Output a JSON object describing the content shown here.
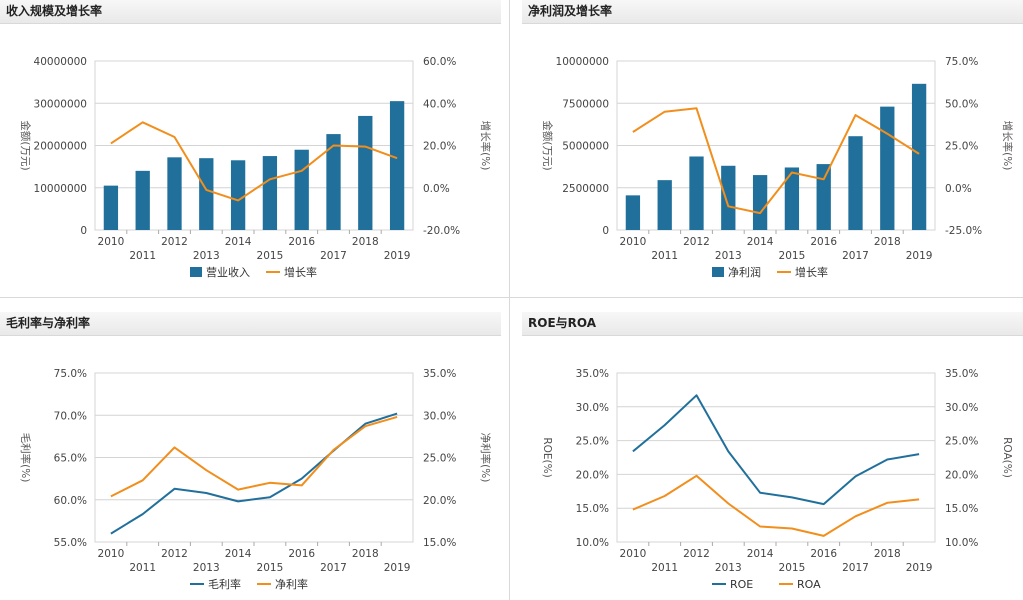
{
  "panels": [
    {
      "id": "revenue",
      "title": "收入规模及增长率"
    },
    {
      "id": "profit",
      "title": "净利润及增长率"
    },
    {
      "id": "margin",
      "title": "毛利率与净利率"
    },
    {
      "id": "roe",
      "title": "ROE与ROA"
    }
  ],
  "chart_data": [
    {
      "type": "bar",
      "title": "收入规模及增长率",
      "categories": [
        "2010",
        "2011",
        "2012",
        "2013",
        "2014",
        "2015",
        "2016",
        "2017",
        "2018",
        "2019"
      ],
      "left_axis": {
        "label": "金额(万元)",
        "ticks": [
          "0",
          "10000000",
          "20000000",
          "30000000",
          "40000000"
        ],
        "lim": [
          0,
          40000000
        ]
      },
      "right_axis": {
        "label": "增长率(%)",
        "ticks": [
          "-20.0%",
          "0.0%",
          "20.0%",
          "40.0%",
          "60.0%"
        ],
        "lim": [
          -20,
          60
        ]
      },
      "series": [
        {
          "name": "营业收入",
          "kind": "bar",
          "axis": "left",
          "color": "#21709c",
          "values": [
            10500000,
            14000000,
            17200000,
            17000000,
            16500000,
            17500000,
            19000000,
            22700000,
            27000000,
            30500000
          ]
        },
        {
          "name": "增长率",
          "kind": "line",
          "axis": "right",
          "color": "#f18e1c",
          "values": [
            21,
            31,
            24,
            -1,
            -6,
            4,
            8,
            20,
            19.5,
            14
          ]
        }
      ],
      "grid": true,
      "legend": "bottom"
    },
    {
      "type": "bar",
      "title": "净利润及增长率",
      "categories": [
        "2010",
        "2011",
        "2012",
        "2013",
        "2014",
        "2015",
        "2016",
        "2017",
        "2018",
        "2019"
      ],
      "left_axis": {
        "label": "金额(万元)",
        "ticks": [
          "0",
          "2500000",
          "5000000",
          "7500000",
          "10000000"
        ],
        "lim": [
          0,
          10000000
        ]
      },
      "right_axis": {
        "label": "增长率(%)",
        "ticks": [
          "-25.0%",
          "0.0%",
          "25.0%",
          "50.0%",
          "75.0%"
        ],
        "lim": [
          -25,
          75
        ]
      },
      "series": [
        {
          "name": "净利润",
          "kind": "bar",
          "axis": "left",
          "color": "#21709c",
          "values": [
            2050000,
            2950000,
            4350000,
            3800000,
            3250000,
            3700000,
            3900000,
            5550000,
            7300000,
            8650000
          ]
        },
        {
          "name": "增长率",
          "kind": "line",
          "axis": "right",
          "color": "#f18e1c",
          "values": [
            33,
            45,
            47,
            -11,
            -15,
            9,
            5,
            43,
            32,
            20
          ]
        }
      ],
      "grid": true,
      "legend": "bottom"
    },
    {
      "type": "line",
      "title": "毛利率与净利率",
      "categories": [
        "2010",
        "2011",
        "2012",
        "2013",
        "2014",
        "2015",
        "2016",
        "2017",
        "2018",
        "2019"
      ],
      "left_axis": {
        "label": "毛利率(%)",
        "ticks": [
          "55.0%",
          "60.0%",
          "65.0%",
          "70.0%",
          "75.0%"
        ],
        "lim": [
          55,
          75
        ]
      },
      "right_axis": {
        "label": "净利率(%)",
        "ticks": [
          "15.0%",
          "20.0%",
          "25.0%",
          "30.0%",
          "35.0%"
        ],
        "lim": [
          15,
          35
        ]
      },
      "series": [
        {
          "name": "毛利率",
          "kind": "line",
          "axis": "left",
          "color": "#21709c",
          "values": [
            56.0,
            58.3,
            61.3,
            60.8,
            59.8,
            60.3,
            62.5,
            65.8,
            69.0,
            70.2
          ]
        },
        {
          "name": "净利率",
          "kind": "line",
          "axis": "right",
          "color": "#f18e1c",
          "values": [
            20.4,
            22.3,
            26.2,
            23.5,
            21.2,
            22.0,
            21.7,
            25.9,
            28.7,
            29.8
          ]
        }
      ],
      "grid": true,
      "legend": "bottom"
    },
    {
      "type": "line",
      "title": "ROE与ROA",
      "categories": [
        "2010",
        "2011",
        "2012",
        "2013",
        "2014",
        "2015",
        "2016",
        "2017",
        "2018",
        "2019"
      ],
      "left_axis": {
        "label": "ROE(%)",
        "ticks": [
          "10.0%",
          "15.0%",
          "20.0%",
          "25.0%",
          "30.0%",
          "35.0%"
        ],
        "lim": [
          10,
          35
        ]
      },
      "right_axis": {
        "label": "ROA(%)",
        "ticks": [
          "10.0%",
          "15.0%",
          "20.0%",
          "25.0%",
          "30.0%",
          "35.0%"
        ],
        "lim": [
          10,
          35
        ]
      },
      "series": [
        {
          "name": "ROE",
          "kind": "line",
          "axis": "left",
          "color": "#21709c",
          "values": [
            23.4,
            27.3,
            31.7,
            23.4,
            17.3,
            16.6,
            15.6,
            19.7,
            22.2,
            23.0
          ]
        },
        {
          "name": "ROA",
          "kind": "line",
          "axis": "right",
          "color": "#f18e1c",
          "values": [
            14.8,
            16.8,
            19.8,
            15.7,
            12.3,
            12.0,
            10.9,
            13.8,
            15.8,
            16.3
          ]
        }
      ],
      "grid": true,
      "legend": "bottom"
    }
  ]
}
